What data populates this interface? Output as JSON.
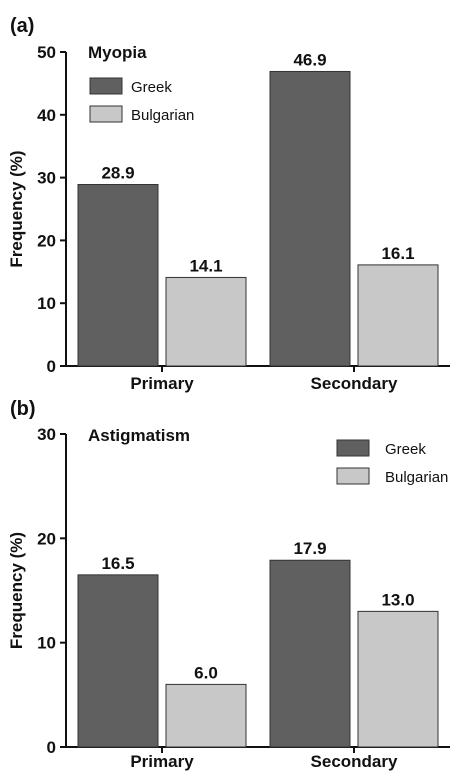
{
  "chart_data": [
    {
      "type": "bar",
      "panel": "(a)",
      "title": "Myopia",
      "ylabel": "Frequency (%)",
      "xlabel": "",
      "categories": [
        "Primary",
        "Secondary"
      ],
      "ylim": [
        0,
        50
      ],
      "yticks": [
        0,
        10,
        20,
        30,
        40,
        50
      ],
      "series": [
        {
          "name": "Greek",
          "values": [
            28.9,
            46.9
          ],
          "color": "#606060"
        },
        {
          "name": "Bulgarian",
          "values": [
            14.1,
            16.1
          ],
          "color": "#c8c8c8"
        }
      ],
      "value_labels": [
        [
          "28.9",
          "46.9"
        ],
        [
          "14.1",
          "16.1"
        ]
      ],
      "legend_position": "top-left",
      "grid": false
    },
    {
      "type": "bar",
      "panel": "(b)",
      "title": "Astigmatism",
      "ylabel": "Frequency (%)",
      "xlabel": "",
      "categories": [
        "Primary",
        "Secondary"
      ],
      "ylim": [
        0,
        30
      ],
      "yticks": [
        0,
        10,
        20,
        30
      ],
      "series": [
        {
          "name": "Greek",
          "values": [
            16.5,
            17.9
          ],
          "color": "#606060"
        },
        {
          "name": "Bulgarian",
          "values": [
            6.0,
            13.0
          ],
          "color": "#c8c8c8"
        }
      ],
      "value_labels": [
        [
          "16.5",
          "17.9"
        ],
        [
          "6.0",
          "13.0"
        ]
      ],
      "legend_position": "top-right",
      "grid": false
    }
  ]
}
